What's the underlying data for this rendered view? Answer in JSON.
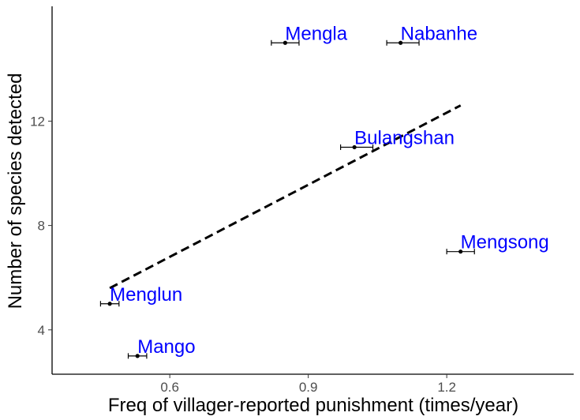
{
  "chart_data": {
    "type": "scatter",
    "xlabel": "Freq of villager-reported punishment (times/year)",
    "ylabel": "Number of species detected",
    "xlim": [
      0.345,
      1.475
    ],
    "ylim": [
      2.3,
      16.4
    ],
    "xticks": [
      0.6,
      0.9,
      1.2
    ],
    "xtick_labels": [
      "0.6",
      "0.9",
      "1.2"
    ],
    "yticks": [
      4,
      8,
      12
    ],
    "ytick_labels": [
      "4",
      "8",
      "12"
    ],
    "grid": false,
    "label_color": "#0000FF",
    "points": [
      {
        "label": "Mengla",
        "x": 0.85,
        "y": 15,
        "xmin": 0.82,
        "xmax": 0.88
      },
      {
        "label": "Nabanhe",
        "x": 1.1,
        "y": 15,
        "xmin": 1.07,
        "xmax": 1.14
      },
      {
        "label": "Bulangshan",
        "x": 1.0,
        "y": 11,
        "xmin": 0.97,
        "xmax": 1.04
      },
      {
        "label": "Mengsong",
        "x": 1.23,
        "y": 7,
        "xmin": 1.2,
        "xmax": 1.26
      },
      {
        "label": "Menglun",
        "x": 0.47,
        "y": 5,
        "xmin": 0.45,
        "xmax": 0.49
      },
      {
        "label": "Mango",
        "x": 0.53,
        "y": 3,
        "xmin": 0.51,
        "xmax": 0.55
      }
    ],
    "trendline": {
      "style": "dashed",
      "x": [
        0.47,
        1.23
      ],
      "y": [
        5.6,
        12.6
      ]
    }
  }
}
